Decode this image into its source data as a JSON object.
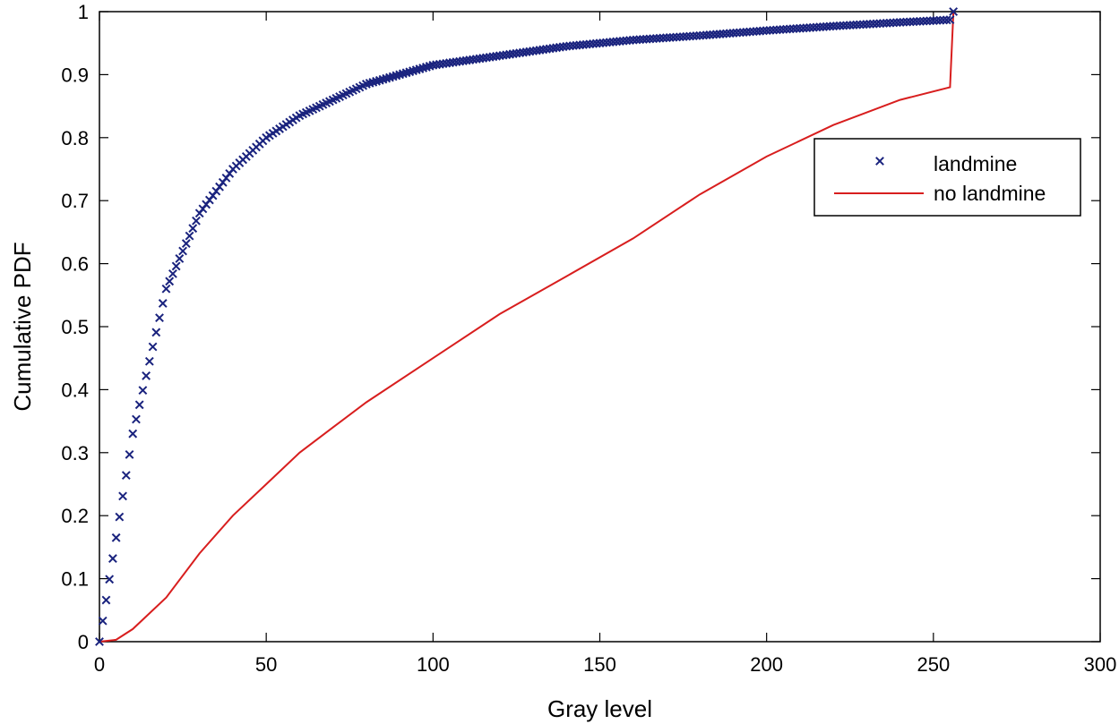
{
  "chart_data": {
    "type": "line",
    "title": "",
    "xlabel": "Gray level",
    "ylabel": "Cumulative PDF",
    "xlim": [
      0,
      300
    ],
    "ylim": [
      0,
      1
    ],
    "xticks": [
      0,
      50,
      100,
      150,
      200,
      250,
      300
    ],
    "yticks": [
      0,
      0.1,
      0.2,
      0.3,
      0.4,
      0.5,
      0.6,
      0.7,
      0.8,
      0.9,
      1
    ],
    "xtick_labels": [
      "0",
      "50",
      "100",
      "150",
      "200",
      "250",
      "300"
    ],
    "ytick_labels": [
      "0",
      "0.1",
      "0.2",
      "0.3",
      "0.4",
      "0.5",
      "0.6",
      "0.7",
      "0.8",
      "0.9",
      "1"
    ],
    "grid": false,
    "legend_position": "top-right",
    "series": [
      {
        "name": "landmine",
        "style": "x-markers",
        "color": "#1a237e",
        "x": [
          0,
          10,
          20,
          30,
          40,
          50,
          60,
          70,
          80,
          90,
          100,
          120,
          140,
          160,
          180,
          200,
          220,
          240,
          255,
          256
        ],
        "y": [
          0.0,
          0.33,
          0.56,
          0.68,
          0.75,
          0.8,
          0.835,
          0.86,
          0.885,
          0.9,
          0.915,
          0.93,
          0.945,
          0.955,
          0.962,
          0.97,
          0.977,
          0.983,
          0.987,
          1.0
        ]
      },
      {
        "name": "no landmine",
        "style": "line",
        "color": "#d81e1e",
        "x": [
          0,
          5,
          10,
          20,
          30,
          40,
          50,
          60,
          70,
          80,
          100,
          120,
          140,
          160,
          180,
          200,
          220,
          240,
          255,
          256
        ],
        "y": [
          0.0,
          0.003,
          0.02,
          0.07,
          0.14,
          0.2,
          0.25,
          0.3,
          0.34,
          0.38,
          0.45,
          0.52,
          0.58,
          0.64,
          0.71,
          0.77,
          0.82,
          0.86,
          0.88,
          1.0
        ]
      }
    ]
  }
}
